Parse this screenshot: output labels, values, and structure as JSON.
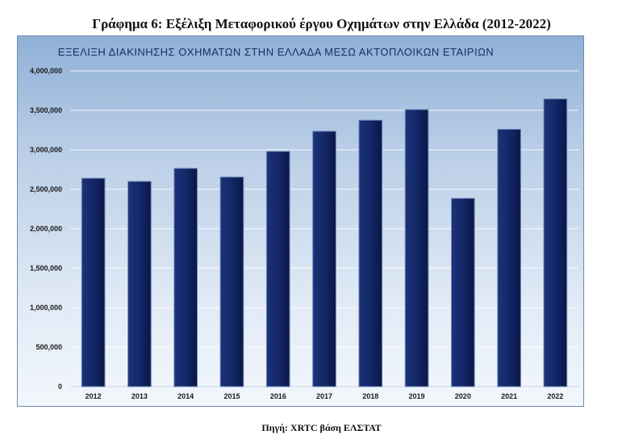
{
  "figure": {
    "caption": "Γράφημα 6: Εξέλιξη Μεταφορικού έργου Οχημάτων στην Ελλάδα (2012-2022)",
    "source": "Πηγή: XRTC βάση ΕΛΣΤΑΤ"
  },
  "chart_data": {
    "type": "bar",
    "title": "ΕΞΕΛΙΞΗ ΔΙΑΚΙΝΗΣΗΣ ΟΧΗΜΑΤΩΝ ΣΤΗΝ ΕΛΛΑΔΑ ΜΕΣΩ ΑΚΤΟΠΛΟΙΚΩΝ ΕΤΑΙΡΙΩΝ",
    "categories": [
      "2012",
      "2013",
      "2014",
      "2015",
      "2016",
      "2017",
      "2018",
      "2019",
      "2020",
      "2021",
      "2022"
    ],
    "values": [
      2640000,
      2600000,
      2765000,
      2655000,
      2980000,
      3235000,
      3375000,
      3510000,
      2385000,
      3260000,
      3645000
    ],
    "ylim": [
      0,
      4000000
    ],
    "yticks": [
      0,
      500000,
      1000000,
      1500000,
      2000000,
      2500000,
      3000000,
      3500000,
      4000000
    ],
    "ytick_labels": [
      "0",
      "500,000",
      "1,000,000",
      "1,500,000",
      "2,000,000",
      "2,500,000",
      "3,000,000",
      "3,500,000",
      "4,000,000"
    ],
    "grid": true,
    "bar_color": "#0f2260"
  }
}
